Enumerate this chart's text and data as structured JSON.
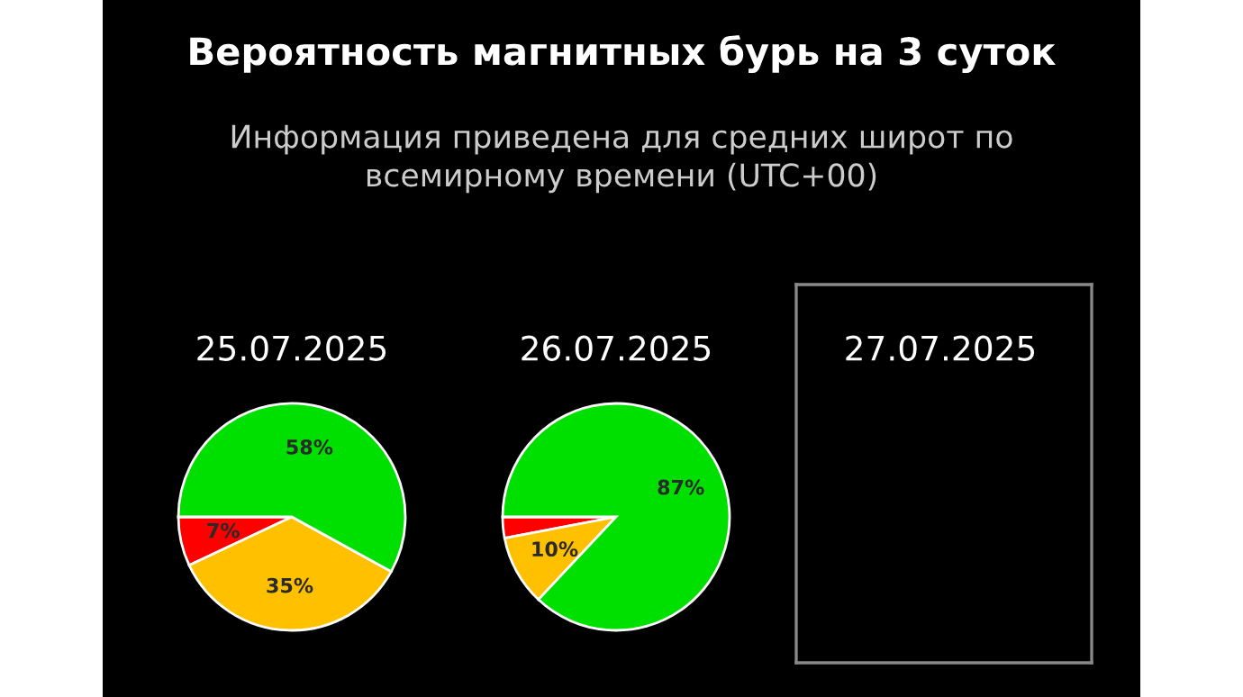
{
  "chart_data": [
    {
      "type": "other",
      "title": "Вероятность магнитных бурь на 3 суток",
      "subtitle": "Информация приведена для средних широт по\nвсемирному времени (UTC+00)"
    },
    {
      "type": "pie",
      "title": "25.07.2025",
      "categories": [
        null,
        null,
        null
      ],
      "values": [
        7,
        35,
        58
      ],
      "colors": [
        "#ff0000",
        "#ffc000",
        "#00e000"
      ],
      "value_labels": [
        "7%",
        "35%",
        "58%"
      ]
    },
    {
      "type": "pie",
      "title": "26.07.2025",
      "categories": [
        null,
        null,
        null
      ],
      "values": [
        3,
        10,
        87
      ],
      "colors": [
        "#ff0000",
        "#ffc000",
        "#00e000"
      ],
      "value_labels": [
        null,
        "10%",
        "87%"
      ]
    },
    {
      "type": "other",
      "title": "27.07.2025"
    }
  ]
}
